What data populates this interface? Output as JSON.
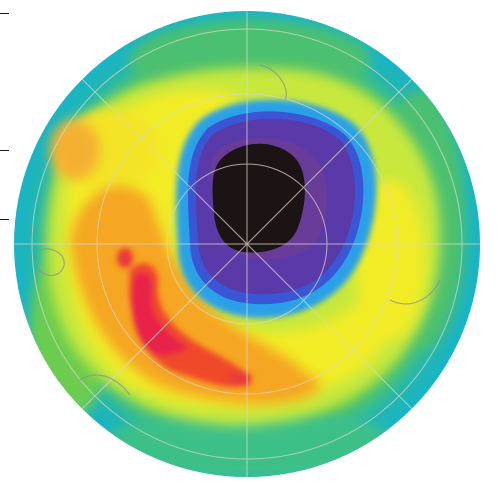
{
  "image": {
    "subject": "polar-ozone-map",
    "projection": "south-polar-stereographic",
    "colors": {
      "outer_ring": "#18b4c8",
      "green": "#5cc85a",
      "yellow_green": "#c8e83c",
      "yellow": "#f2ec28",
      "orange": "#f5a623",
      "red_orange": "#f04a2a",
      "magenta_red": "#e8204a",
      "light_blue": "#2aa0e8",
      "blue": "#3a56d4",
      "violet": "#5a3aa8",
      "purple": "#6a3c9a",
      "black_core": "#1c1414",
      "grid_lines": "#d8d8c8",
      "coastline": "#8a8aa0"
    },
    "features": [
      "ozone-hole-core",
      "ozone-depletion-ring",
      "high-ozone-band",
      "latitude-longitude-grid",
      "coastlines"
    ]
  },
  "left_ticks": [
    "tick",
    "tick",
    "tick"
  ]
}
